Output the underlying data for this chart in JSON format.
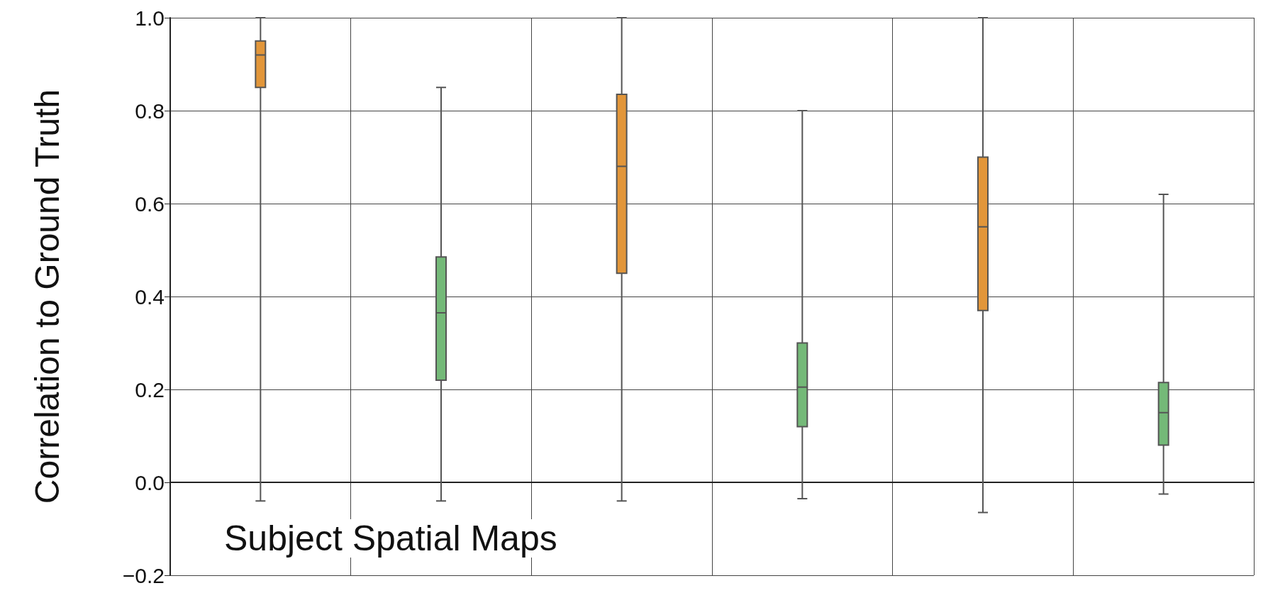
{
  "chart_data": {
    "type": "box",
    "ylabel": "Correlation to Ground Truth",
    "categories": [
      null,
      null,
      null,
      null,
      null,
      null
    ],
    "boxes": [
      {
        "low": -0.04,
        "q1": 0.85,
        "median": 0.92,
        "q3": 0.95,
        "high": 1.0
      },
      {
        "low": -0.04,
        "q1": 0.22,
        "median": 0.365,
        "q3": 0.485,
        "high": 0.85
      },
      {
        "low": -0.04,
        "q1": 0.45,
        "median": 0.68,
        "q3": 0.835,
        "high": 1.0
      },
      {
        "low": -0.035,
        "q1": 0.12,
        "median": 0.205,
        "q3": 0.3,
        "high": 0.8
      },
      {
        "low": -0.065,
        "q1": 0.37,
        "median": 0.55,
        "q3": 0.7,
        "high": 1.0
      },
      {
        "low": -0.025,
        "q1": 0.08,
        "median": 0.15,
        "q3": 0.215,
        "high": 0.62
      }
    ],
    "colors": [
      "#e2963a",
      "#74b978",
      "#e2963a",
      "#74b978",
      "#e2963a",
      "#74b978"
    ],
    "ylim": [
      -0.2,
      1.0
    ],
    "yticks": [
      {
        "value": -0.2,
        "label": "−0.2"
      },
      {
        "value": 0,
        "label": "0.0"
      },
      {
        "value": 0.2,
        "label": "0.2"
      },
      {
        "value": 0.4,
        "label": "0.4"
      },
      {
        "value": 0.6,
        "label": "0.6"
      },
      {
        "value": 0.8,
        "label": "0.8"
      },
      {
        "value": 1.0,
        "label": "1.0"
      }
    ],
    "grid": true,
    "tick_labels": "y",
    "annotations": [
      "Subject Spatial Maps"
    ]
  }
}
